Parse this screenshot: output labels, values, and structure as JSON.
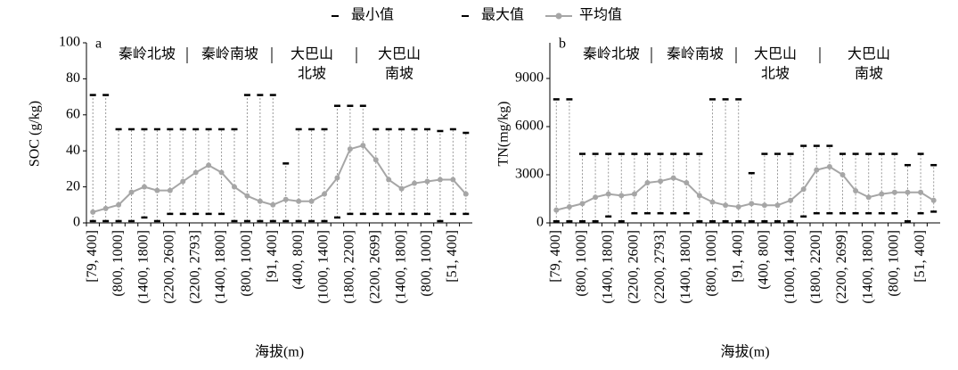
{
  "chart_data": [
    {
      "type": "errorline",
      "panel": "a",
      "ylabel": "SOC (g/kg)",
      "xlabel": "海拔(m)",
      "categories": [
        "[79, 400]",
        null,
        "(800, 1000]",
        null,
        "(1400, 1800]",
        null,
        "(2200, 2600]",
        null,
        "(2200, 2793]",
        null,
        "(1400, 1800]",
        null,
        "(800, 1000]",
        null,
        "[91, 400]",
        null,
        "(400, 800]",
        null,
        "(1000, 1400]",
        null,
        "(1800, 2200]",
        null,
        "(2200, 2699]",
        null,
        "(1400, 1800]",
        null,
        "(800, 1000]",
        null,
        "[51, 400]",
        null
      ],
      "series": [
        {
          "name": "最小值",
          "role": "min",
          "color": "#000000",
          "values": [
            1,
            1,
            1,
            1,
            3,
            1,
            5,
            5,
            5,
            5,
            5,
            1,
            1,
            1,
            1,
            1,
            1,
            1,
            1,
            3,
            5,
            5,
            5,
            5,
            5,
            5,
            5,
            1,
            5,
            5
          ]
        },
        {
          "name": "最大值",
          "role": "max",
          "color": "#000000",
          "values": [
            71,
            71,
            52,
            52,
            52,
            52,
            52,
            52,
            52,
            52,
            52,
            52,
            71,
            71,
            71,
            33,
            52,
            52,
            52,
            65,
            65,
            65,
            52,
            52,
            52,
            52,
            52,
            51,
            52,
            50
          ]
        },
        {
          "name": "平均值",
          "role": "mean",
          "color": "#a6a6a6",
          "values": [
            6,
            8,
            10,
            17,
            20,
            18,
            18,
            23,
            28,
            32,
            28,
            20,
            15,
            12,
            10,
            13,
            12,
            12,
            16,
            25,
            41,
            43,
            35,
            24,
            19,
            22,
            23,
            24,
            24,
            16
          ]
        }
      ],
      "ylim": [
        0,
        100
      ],
      "yticks": [
        0,
        20,
        40,
        60,
        80,
        100
      ],
      "annotations": [
        "秦岭北坡",
        "秦岭南坡",
        "大巴山",
        "北坡",
        "大巴山",
        "南坡"
      ]
    },
    {
      "type": "errorline",
      "panel": "b",
      "ylabel": "TN(mg/kg)",
      "xlabel": "海拔(m)",
      "categories": [
        "[79, 400]",
        null,
        "(800, 1000]",
        null,
        "(1400, 1800]",
        null,
        "(2200, 2600]",
        null,
        "(2200, 2793]",
        null,
        "(1400, 1800]",
        null,
        "(800, 1000]",
        null,
        "[91, 400]",
        null,
        "(400, 800]",
        null,
        "(1000, 1400]",
        null,
        "(1800, 2200]",
        null,
        "(2200, 2699]",
        null,
        "(1400, 1800]",
        null,
        "(800, 1000]",
        null,
        "[51, 400]",
        null
      ],
      "series": [
        {
          "role": "min",
          "color": "#000000",
          "values": [
            100,
            100,
            100,
            100,
            400,
            100,
            600,
            600,
            600,
            600,
            600,
            100,
            100,
            100,
            100,
            100,
            100,
            100,
            100,
            400,
            600,
            600,
            600,
            600,
            600,
            600,
            600,
            100,
            600,
            700
          ]
        },
        {
          "role": "max",
          "color": "#000000",
          "values": [
            7700,
            7700,
            4300,
            4300,
            4300,
            4300,
            4300,
            4300,
            4300,
            4300,
            4300,
            4300,
            7700,
            7700,
            7700,
            3100,
            4300,
            4300,
            4300,
            4800,
            4800,
            4800,
            4300,
            4300,
            4300,
            4300,
            4300,
            3600,
            4300,
            3600
          ]
        },
        {
          "role": "mean",
          "color": "#a6a6a6",
          "values": [
            800,
            1000,
            1200,
            1600,
            1800,
            1700,
            1800,
            2500,
            2600,
            2800,
            2500,
            1700,
            1300,
            1100,
            1000,
            1200,
            1100,
            1100,
            1400,
            2100,
            3300,
            3500,
            3000,
            2000,
            1600,
            1800,
            1900,
            1900,
            1900,
            1400
          ]
        }
      ],
      "ylim": [
        0,
        9000
      ],
      "yticks": [
        0,
        3000,
        6000,
        9000
      ],
      "annotations": [
        "秦岭北坡",
        "秦岭南坡",
        "大巴山",
        "北坡",
        "大巴山",
        "南坡"
      ]
    }
  ]
}
